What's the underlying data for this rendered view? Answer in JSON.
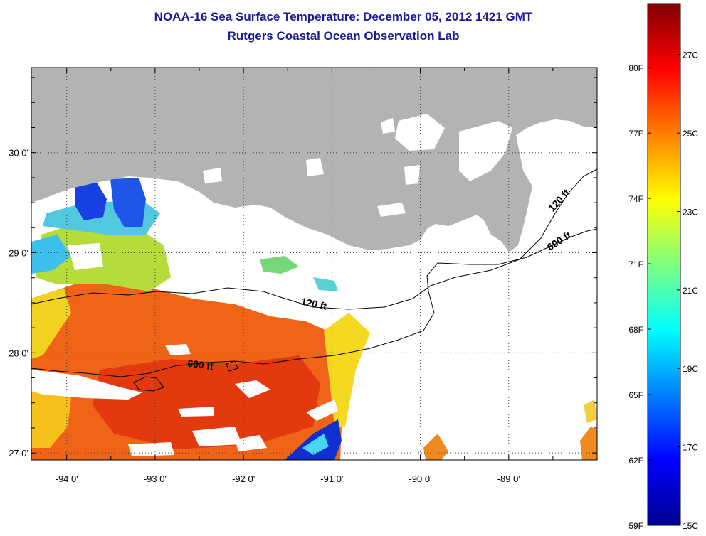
{
  "title": {
    "line1": "NOAA-16 Sea Surface Temperature:  December 05, 2012 1421 GMT",
    "line2": "Rutgers Coastal Ocean Observation Lab"
  },
  "map": {
    "lat_ticks": [
      {
        "value": 30,
        "label": "30 0'"
      },
      {
        "value": 29,
        "label": "29 0'"
      },
      {
        "value": 28,
        "label": "28 0'"
      },
      {
        "value": 27,
        "label": "27 0'"
      }
    ],
    "lon_ticks": [
      {
        "value": -94,
        "label": "-94 0'"
      },
      {
        "value": -93,
        "label": "-93 0'"
      },
      {
        "value": -92,
        "label": "-92 0'"
      },
      {
        "value": -91,
        "label": "-91 0'"
      },
      {
        "value": -90,
        "label": "-90 0'"
      },
      {
        "value": -89,
        "label": "-89 0'"
      }
    ],
    "lon_range": [
      -94.4,
      -88.0
    ],
    "lat_range": [
      26.93,
      30.85
    ],
    "contour_labels": {
      "c120_west": "120 ft",
      "c600_west": "600 ft",
      "c120_east": "120 ft",
      "c600_east": "600 ft"
    },
    "land_color": "#b3b3b3",
    "cloud_color": "#ffffff",
    "grid": "dotted"
  },
  "colorbar": {
    "fahrenheit_labels": [
      "80F",
      "77F",
      "74F",
      "71F",
      "68F",
      "65F",
      "62F",
      "59F"
    ],
    "celsius_labels": [
      "27C",
      "25C",
      "23C",
      "21C",
      "19C",
      "17C",
      "15C"
    ],
    "range_c": [
      15,
      28.3
    ],
    "colormap": "jet"
  }
}
